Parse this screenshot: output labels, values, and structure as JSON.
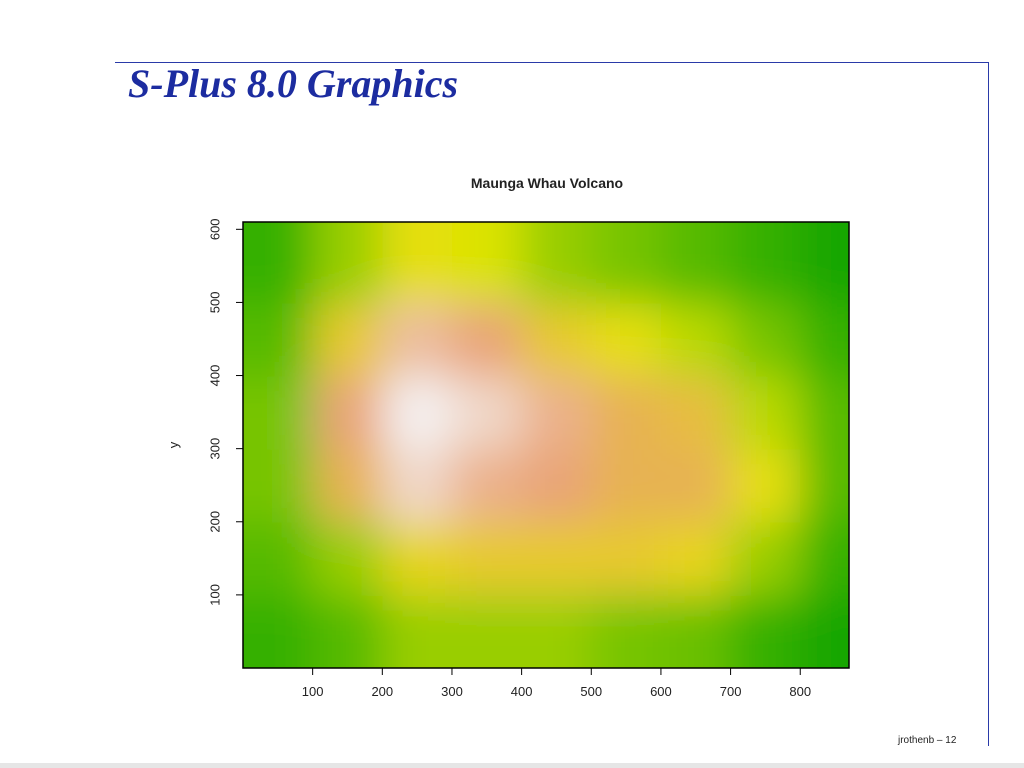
{
  "header": {
    "title": "S-Plus 8.0 Graphics"
  },
  "footer": "jrothenb – 12",
  "chart_data": {
    "type": "heatmap",
    "title": "Maunga Whau Volcano",
    "y_label": "y",
    "x": [
      50,
      150,
      250,
      350,
      450,
      550,
      650,
      750,
      850
    ],
    "y": [
      50,
      150,
      250,
      350,
      450,
      550
    ],
    "z": [
      [
        100,
        105,
        115,
        115,
        115,
        110,
        108,
        100,
        95
      ],
      [
        105,
        115,
        135,
        140,
        140,
        140,
        135,
        115,
        100
      ],
      [
        110,
        150,
        180,
        165,
        160,
        150,
        150,
        130,
        105
      ],
      [
        110,
        160,
        190,
        180,
        165,
        150,
        145,
        120,
        105
      ],
      [
        105,
        140,
        170,
        160,
        140,
        130,
        120,
        110,
        100
      ],
      [
        100,
        115,
        130,
        125,
        115,
        110,
        105,
        100,
        95
      ]
    ],
    "colors": [
      "#14a600",
      "#e6e600",
      "#e8a070",
      "#f4f0f0"
    ],
    "xlim": [
      0,
      870
    ],
    "ylim": [
      0,
      610
    ],
    "xticks": [
      100,
      200,
      300,
      400,
      500,
      600,
      700,
      800
    ],
    "yticks": [
      100,
      200,
      300,
      400,
      500,
      600
    ]
  }
}
